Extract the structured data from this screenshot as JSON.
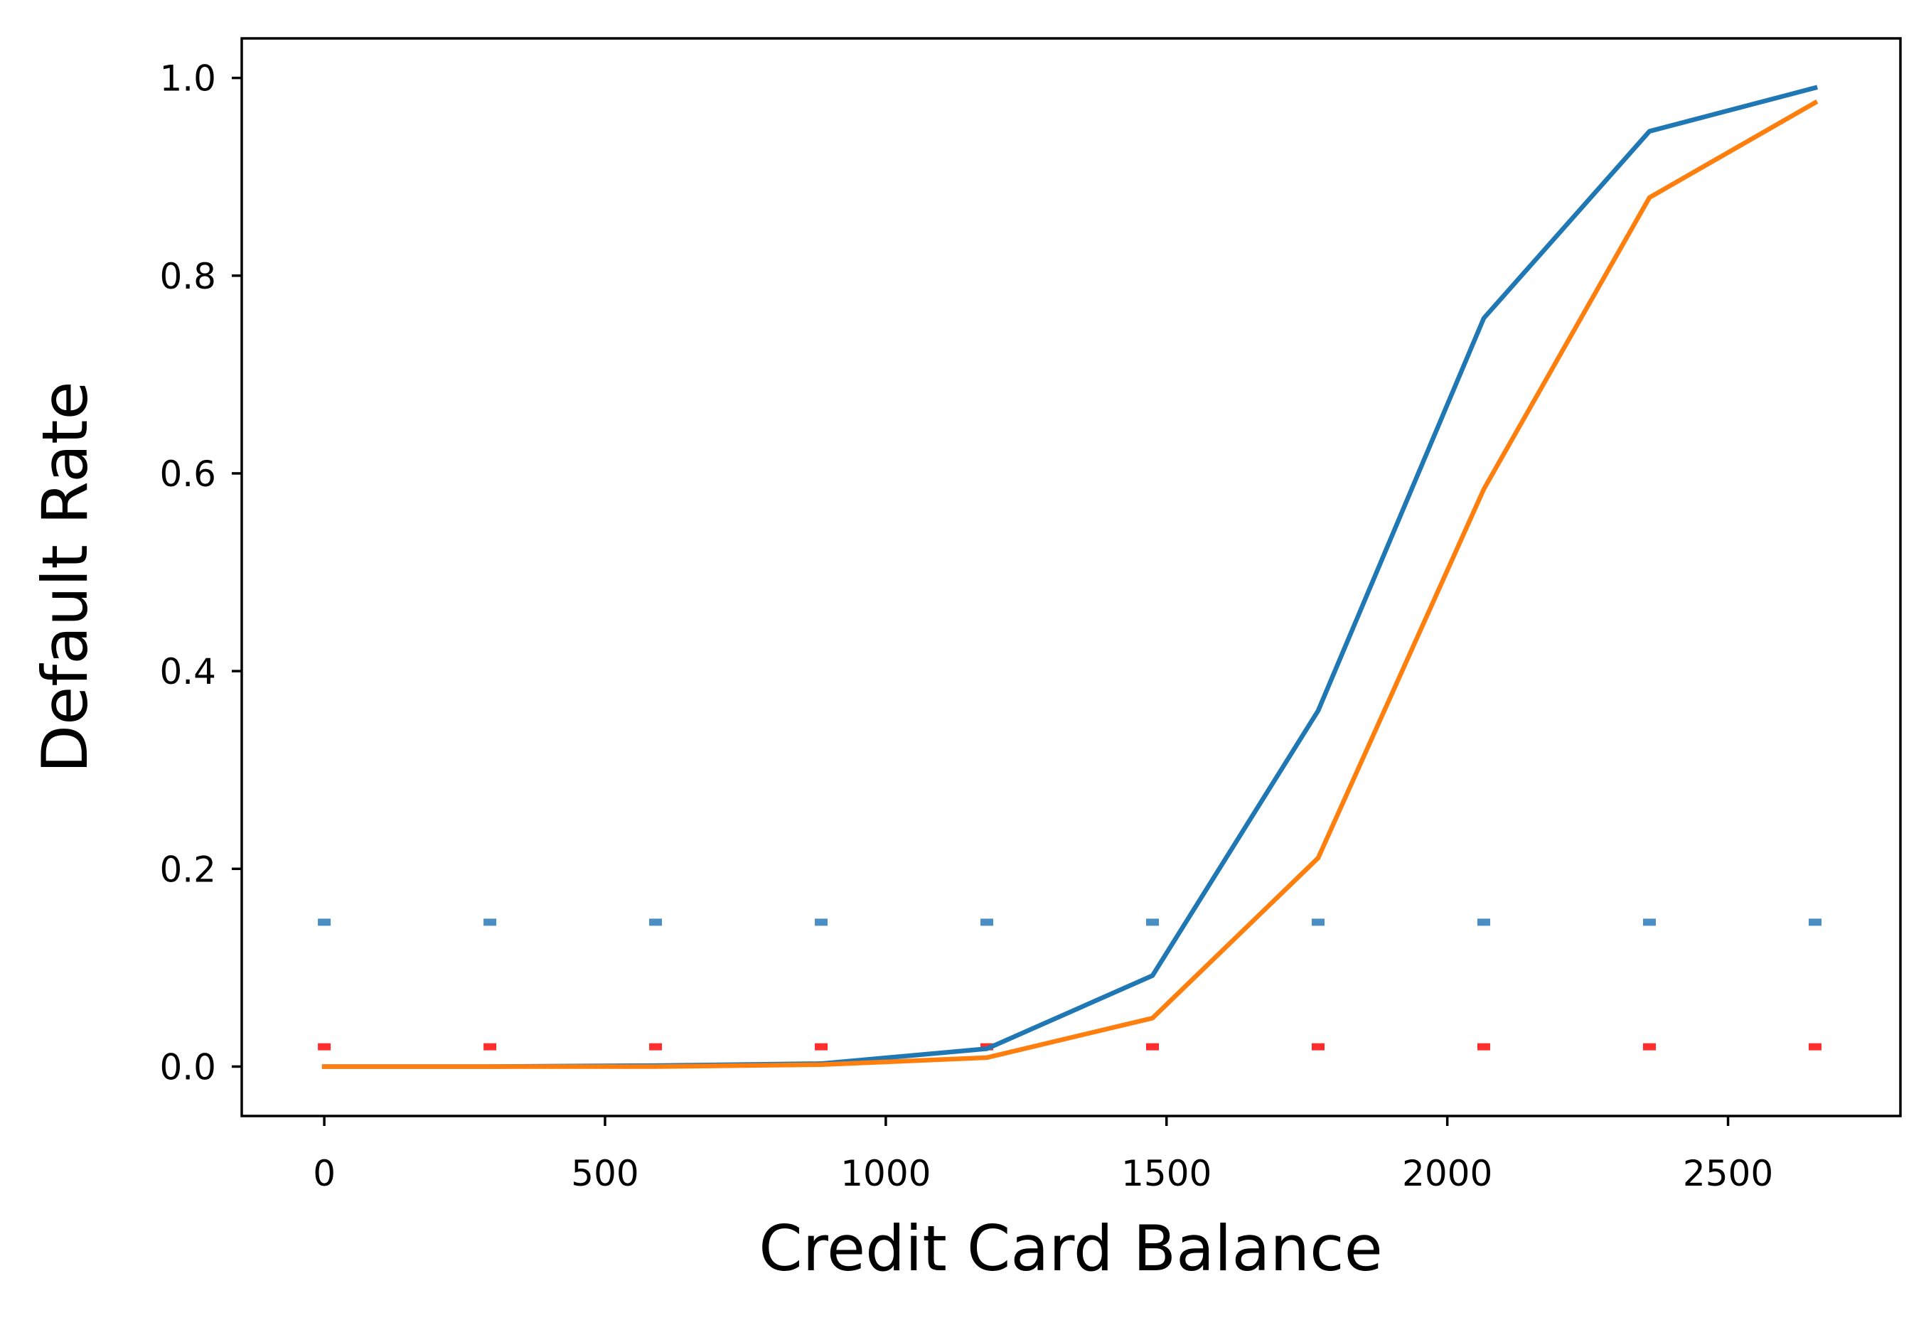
{
  "chart_data": {
    "type": "line",
    "xlabel": "Credit Card Balance",
    "ylabel": "Default Rate",
    "xlim": [
      -147,
      2807
    ],
    "ylim": [
      -0.05,
      1.04
    ],
    "xticks": [
      0,
      500,
      1000,
      1500,
      2000,
      2500
    ],
    "xtick_labels": [
      "0",
      "500",
      "1000",
      "1500",
      "2000",
      "2500"
    ],
    "yticks": [
      0.0,
      0.2,
      0.4,
      0.6,
      0.8,
      1.0
    ],
    "ytick_labels": [
      "0.0",
      "0.2",
      "0.4",
      "0.6",
      "0.8",
      "1.0"
    ],
    "grid": false,
    "legend": false,
    "series": [
      {
        "color": "#1f77b4",
        "x": [
          0,
          295,
          590,
          885,
          1180,
          1475,
          1770,
          2065,
          2360,
          2655
        ],
        "y": [
          0.0,
          0.0,
          0.001,
          0.003,
          0.018,
          0.092,
          0.36,
          0.757,
          0.946,
          0.99
        ]
      },
      {
        "color": "#ff7f0e",
        "x": [
          0,
          295,
          590,
          885,
          1180,
          1475,
          1770,
          2065,
          2360,
          2655
        ],
        "y": [
          0.0,
          0.0,
          0.0,
          0.002,
          0.009,
          0.049,
          0.211,
          0.584,
          0.879,
          0.975
        ]
      }
    ],
    "rug_marks": [
      {
        "color": "#4a8ec4",
        "y": 0.146,
        "x": [
          0,
          295,
          590,
          885,
          1180,
          1475,
          1770,
          2065,
          2360,
          2655
        ]
      },
      {
        "color": "#ff2e2e",
        "y": 0.02,
        "x": [
          0,
          295,
          590,
          885,
          1180,
          1475,
          1770,
          2065,
          2360,
          2655
        ]
      }
    ]
  }
}
